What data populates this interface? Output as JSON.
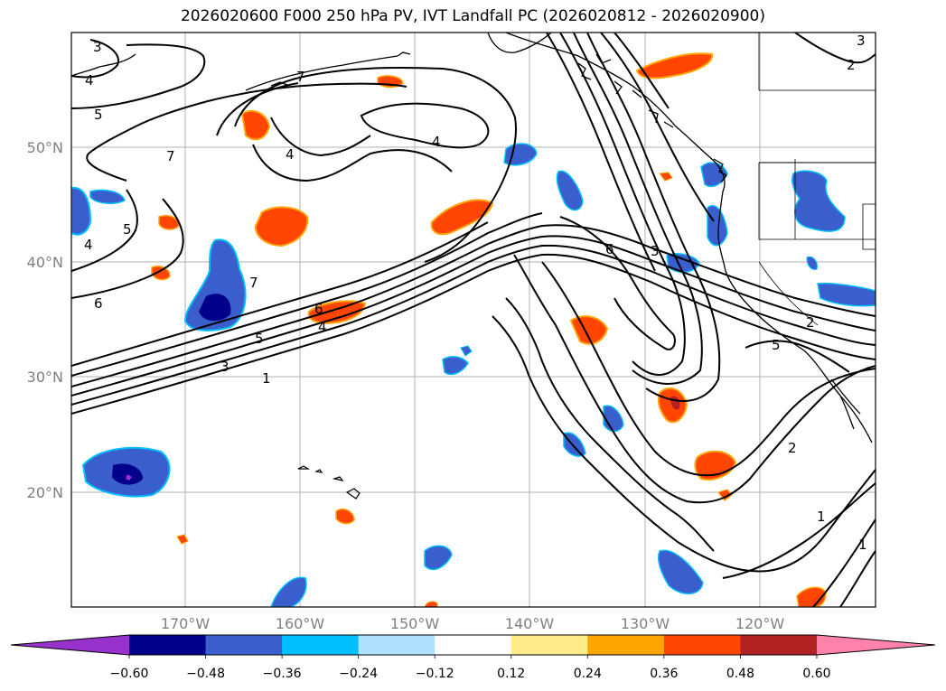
{
  "title": "2026020600 F000 250 hPa PV, IVT Landfall PC (2026020812 - 2026020900)",
  "map": {
    "lat_ticks": [
      "20°N",
      "30°N",
      "40°N",
      "50°N"
    ],
    "lon_ticks": [
      "170°W",
      "160°W",
      "150°W",
      "140°W",
      "130°W",
      "120°W"
    ],
    "contour_labels": [
      {
        "text": "3"
      },
      {
        "text": "4"
      },
      {
        "text": "5"
      },
      {
        "text": "7"
      },
      {
        "text": "4"
      },
      {
        "text": "7"
      },
      {
        "text": "4"
      },
      {
        "text": "5"
      },
      {
        "text": "4"
      },
      {
        "text": "6"
      },
      {
        "text": "7"
      },
      {
        "text": "6"
      },
      {
        "text": "5"
      },
      {
        "text": "4"
      },
      {
        "text": "3"
      },
      {
        "text": "1"
      },
      {
        "text": "6"
      },
      {
        "text": "3"
      },
      {
        "text": "2"
      },
      {
        "text": "5"
      },
      {
        "text": "2"
      },
      {
        "text": "1"
      },
      {
        "text": "1"
      },
      {
        "text": "2"
      },
      {
        "text": "3"
      }
    ]
  },
  "colorbar": {
    "colors": [
      "#9932cc",
      "#00008b",
      "#3a5fcd",
      "#00bfff",
      "#b0e2ff",
      "#ffffff",
      "#ffec8b",
      "#ffa500",
      "#ff4500",
      "#b22222",
      "#ff82ab"
    ],
    "ticks": [
      "−0.60",
      "−0.48",
      "−0.36",
      "−0.24",
      "−0.12",
      "0.12",
      "0.24",
      "0.36",
      "0.48",
      "0.60"
    ]
  }
}
